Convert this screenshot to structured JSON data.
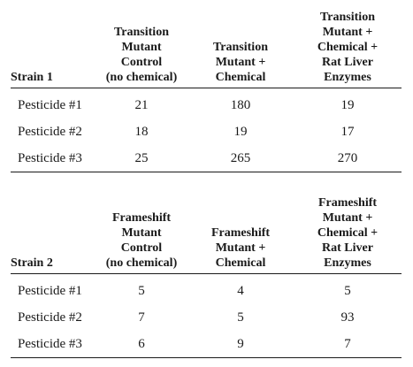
{
  "tables": [
    {
      "headers": [
        "Strain 1",
        "Transition\nMutant\nControl\n(no chemical)",
        "Transition\nMutant +\nChemical",
        "Transition\nMutant +\nChemical +\nRat Liver\nEnzymes"
      ],
      "rows": [
        [
          "Pesticide #1",
          "21",
          "180",
          "19"
        ],
        [
          "Pesticide #2",
          "18",
          "19",
          "17"
        ],
        [
          "Pesticide #3",
          "25",
          "265",
          "270"
        ]
      ]
    },
    {
      "headers": [
        "Strain 2",
        "Frameshift\nMutant\nControl\n(no chemical)",
        "Frameshift\nMutant +\nChemical",
        "Frameshift\nMutant +\nChemical +\nRat Liver\nEnzymes"
      ],
      "rows": [
        [
          "Pesticide #1",
          "5",
          "4",
          "5"
        ],
        [
          "Pesticide #2",
          "7",
          "5",
          "93"
        ],
        [
          "Pesticide #3",
          "6",
          "9",
          "7"
        ]
      ]
    }
  ]
}
